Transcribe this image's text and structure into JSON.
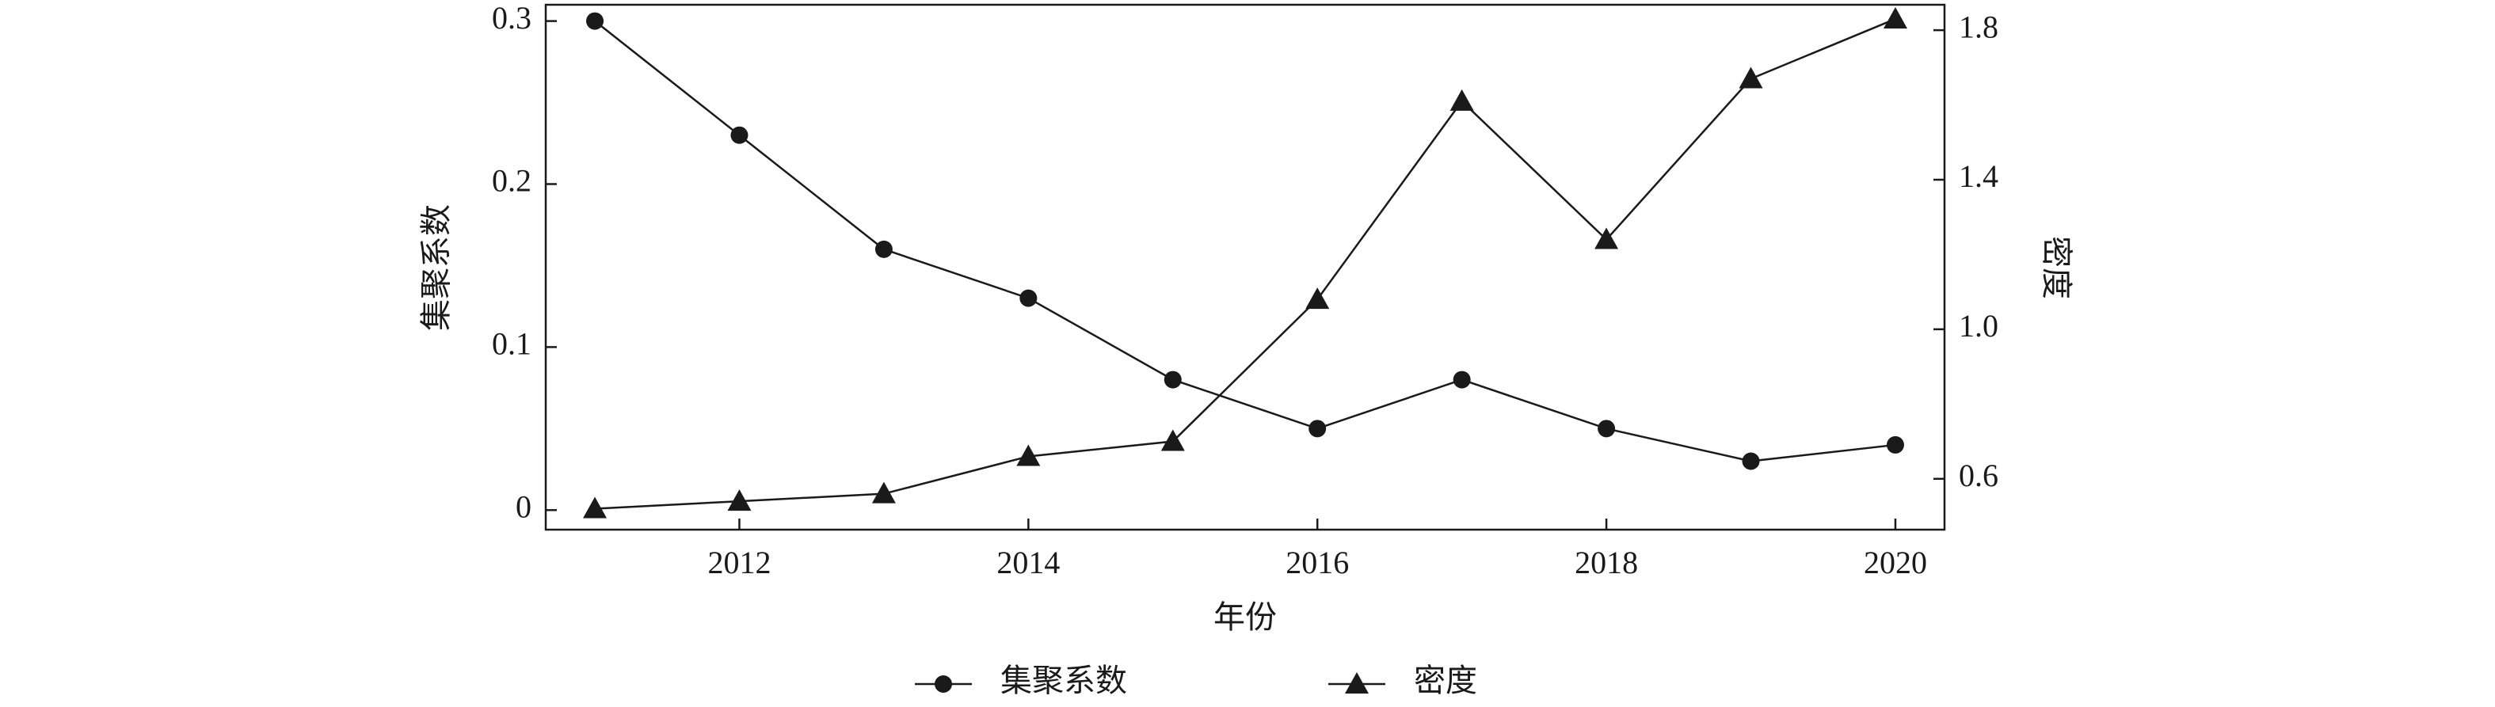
{
  "chart_data": {
    "type": "line",
    "x": [
      2011,
      2012,
      2013,
      2014,
      2015,
      2016,
      2017,
      2018,
      2019,
      2020
    ],
    "x_label": "年份",
    "y_label": "集聚系数",
    "y2_label": "密度",
    "series": [
      {
        "name": "集聚系数",
        "color": "#1a1a1a",
        "marker": "circle",
        "values": [
          0.3,
          0.23,
          0.16,
          0.13,
          0.08,
          0.05,
          0.08,
          0.05,
          0.03,
          0.04
        ]
      },
      {
        "name": "密度",
        "color": "#1a1a1a",
        "marker": "triangle",
        "axis": "y2",
        "values": [
          0.52,
          0.54,
          0.56,
          0.66,
          0.7,
          1.08,
          1.61,
          1.24,
          1.67,
          1.83
        ]
      }
    ],
    "xlim": [
      2010.66,
      2020.34
    ],
    "xticks": [
      2012,
      2014,
      2016,
      2018,
      2020
    ],
    "ylim": [
      -0.012,
      0.31
    ],
    "yticks": [
      0,
      0.1,
      0.2,
      0.3
    ],
    "y2lim": [
      0.464,
      1.868
    ],
    "y2ticks": [
      0.6,
      {
        "value": 1.0,
        "label": "1.0"
      },
      1.4,
      1.8
    ],
    "grid": false,
    "legend": "bottom"
  }
}
